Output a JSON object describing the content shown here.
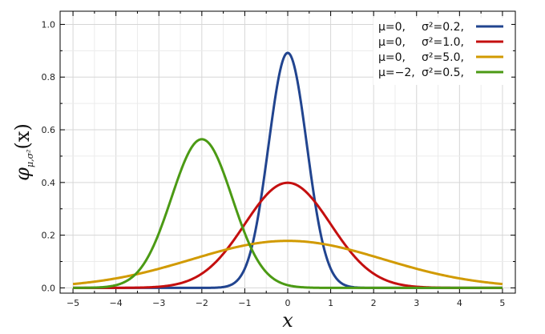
{
  "chart_data": {
    "type": "line",
    "title": "",
    "xlabel": "x",
    "ylabel": "φ",
    "ylabel_sub": "μ,σ²",
    "ylabel_arg": "(x)",
    "xlim": [
      -5.3,
      5.3
    ],
    "ylim": [
      -0.02,
      1.05
    ],
    "xticks": [
      -5,
      -4,
      -3,
      -2,
      -1,
      0,
      1,
      2,
      3,
      4,
      5
    ],
    "xtick_labels": [
      "−5",
      "−4",
      "−3",
      "−2",
      "−1",
      "0",
      "1",
      "2",
      "3",
      "4",
      "5"
    ],
    "yticks": [
      0.0,
      0.2,
      0.4,
      0.6,
      0.8,
      1.0
    ],
    "ytick_labels": [
      "0.0",
      "0.2",
      "0.4",
      "0.6",
      "0.8",
      "1.0"
    ],
    "grid": true,
    "legend_position": "top-right",
    "x_range": [
      -5,
      5
    ],
    "series": [
      {
        "name": "μ=0,   σ²=0.2,",
        "mu_label": "μ=0,",
        "var_label": "σ²=0.2,",
        "mu": 0,
        "variance": 0.2,
        "color": "#21448f"
      },
      {
        "name": "μ=0,   σ²=1.0,",
        "mu_label": "μ=0,",
        "var_label": "σ²=1.0,",
        "mu": 0,
        "variance": 1.0,
        "color": "#c40f0f"
      },
      {
        "name": "μ=0,   σ²=5.0,",
        "mu_label": "μ=0,",
        "var_label": "σ²=5.0,",
        "mu": 0,
        "variance": 5.0,
        "color": "#d19a00"
      },
      {
        "name": "μ=−2, σ²=0.5,",
        "mu_label": "μ=−2,",
        "var_label": "σ²=0.5,",
        "mu": -2,
        "variance": 0.5,
        "color": "#4b9a14"
      }
    ]
  }
}
